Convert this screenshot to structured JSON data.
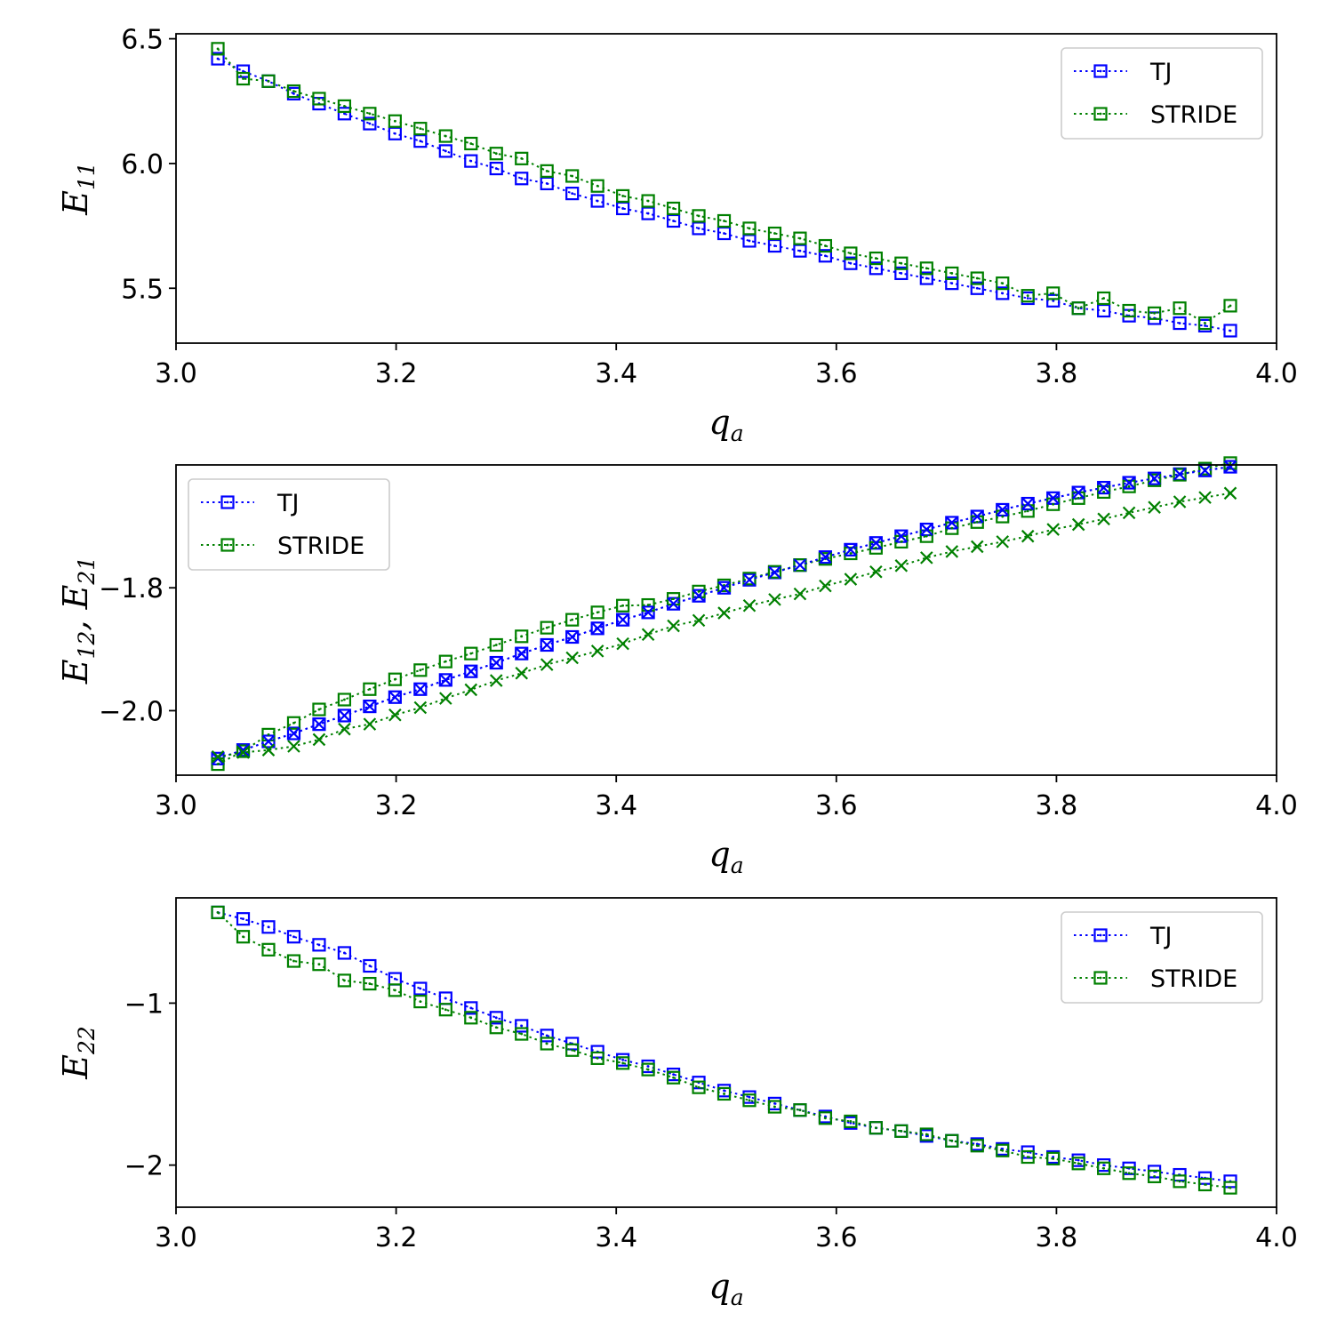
{
  "chart_data": [
    {
      "type": "line",
      "xlabel": {
        "main": "q",
        "sub": "a"
      },
      "ylabel": {
        "main": "E",
        "sub": "11"
      },
      "xlim": [
        3.0,
        4.0
      ],
      "ylim": [
        5.28,
        6.52
      ],
      "xticks": [
        "3.0",
        "3.2",
        "3.4",
        "3.6",
        "3.8",
        "4.0"
      ],
      "yticks": [
        "5.5",
        "6.0",
        "6.5"
      ],
      "legend_position": "top-right",
      "x": [
        3.038,
        3.061,
        3.084,
        3.107,
        3.13,
        3.153,
        3.176,
        3.199,
        3.222,
        3.245,
        3.268,
        3.291,
        3.314,
        3.337,
        3.36,
        3.383,
        3.406,
        3.429,
        3.452,
        3.475,
        3.498,
        3.521,
        3.544,
        3.567,
        3.59,
        3.613,
        3.636,
        3.659,
        3.682,
        3.705,
        3.728,
        3.751,
        3.774,
        3.797,
        3.82,
        3.843,
        3.866,
        3.889,
        3.912,
        3.935,
        3.958
      ],
      "series": [
        {
          "name": "TJ",
          "color": "#0000ff",
          "marker": "square",
          "values": [
            6.42,
            6.37,
            6.33,
            6.28,
            6.24,
            6.2,
            6.16,
            6.12,
            6.09,
            6.05,
            6.01,
            5.98,
            5.94,
            5.92,
            5.88,
            5.85,
            5.82,
            5.8,
            5.77,
            5.74,
            5.72,
            5.69,
            5.67,
            5.65,
            5.63,
            5.6,
            5.58,
            5.56,
            5.54,
            5.52,
            5.5,
            5.48,
            5.46,
            5.45,
            5.42,
            5.41,
            5.39,
            5.38,
            5.36,
            5.35,
            5.33
          ]
        },
        {
          "name": "STRIDE",
          "color": "#008000",
          "marker": "square",
          "values": [
            6.46,
            6.34,
            6.33,
            6.29,
            6.26,
            6.23,
            6.2,
            6.17,
            6.14,
            6.11,
            6.08,
            6.04,
            6.02,
            5.97,
            5.95,
            5.91,
            5.87,
            5.85,
            5.82,
            5.79,
            5.77,
            5.74,
            5.72,
            5.7,
            5.67,
            5.64,
            5.62,
            5.6,
            5.58,
            5.56,
            5.54,
            5.52,
            5.47,
            5.48,
            5.42,
            5.46,
            5.41,
            5.4,
            5.42,
            5.36,
            5.43
          ]
        }
      ]
    },
    {
      "type": "line",
      "xlabel": {
        "main": "q",
        "sub": "a"
      },
      "ylabel": {
        "main": "E",
        "sub": "12",
        "sep": ", ",
        "main2": "E",
        "sub2": "21"
      },
      "xlim": [
        3.0,
        4.0
      ],
      "ylim": [
        -2.105,
        -1.6
      ],
      "xticks": [
        "3.0",
        "3.2",
        "3.4",
        "3.6",
        "3.8",
        "4.0"
      ],
      "yticks": [
        "−2.0",
        "−1.8"
      ],
      "legend_position": "top-left",
      "x": [
        3.038,
        3.061,
        3.084,
        3.107,
        3.13,
        3.153,
        3.176,
        3.199,
        3.222,
        3.245,
        3.268,
        3.291,
        3.314,
        3.337,
        3.36,
        3.383,
        3.406,
        3.429,
        3.452,
        3.475,
        3.498,
        3.521,
        3.544,
        3.567,
        3.59,
        3.613,
        3.636,
        3.659,
        3.682,
        3.705,
        3.728,
        3.751,
        3.774,
        3.797,
        3.82,
        3.843,
        3.866,
        3.889,
        3.912,
        3.935,
        3.958
      ],
      "series": [
        {
          "name": "TJ",
          "color": "#0000ff",
          "marker": "square",
          "values": [
            -2.078,
            -2.064,
            -2.05,
            -2.037,
            -2.022,
            -2.008,
            -1.993,
            -1.978,
            -1.965,
            -1.95,
            -1.936,
            -1.922,
            -1.907,
            -1.893,
            -1.88,
            -1.866,
            -1.852,
            -1.84,
            -1.826,
            -1.813,
            -1.8,
            -1.787,
            -1.775,
            -1.763,
            -1.75,
            -1.738,
            -1.727,
            -1.716,
            -1.705,
            -1.694,
            -1.684,
            -1.673,
            -1.663,
            -1.654,
            -1.645,
            -1.637,
            -1.629,
            -1.622,
            -1.615,
            -1.609,
            -1.603
          ]
        },
        {
          "name": "STRIDE",
          "color": "#008000",
          "marker": "square",
          "values": [
            -2.087,
            -2.066,
            -2.039,
            -2.02,
            -1.998,
            -1.982,
            -1.965,
            -1.949,
            -1.934,
            -1.92,
            -1.907,
            -1.893,
            -1.879,
            -1.865,
            -1.852,
            -1.84,
            -1.829,
            -1.828,
            -1.818,
            -1.806,
            -1.796,
            -1.785,
            -1.774,
            -1.763,
            -1.753,
            -1.744,
            -1.735,
            -1.725,
            -1.716,
            -1.703,
            -1.693,
            -1.684,
            -1.675,
            -1.664,
            -1.654,
            -1.644,
            -1.635,
            -1.625,
            -1.616,
            -1.606,
            -1.597
          ]
        },
        {
          "name": "TJ E21",
          "color": "#0000ff",
          "marker": "x",
          "legend": false,
          "values": [
            -2.078,
            -2.064,
            -2.05,
            -2.037,
            -2.022,
            -2.008,
            -1.993,
            -1.978,
            -1.965,
            -1.95,
            -1.936,
            -1.922,
            -1.907,
            -1.893,
            -1.88,
            -1.866,
            -1.852,
            -1.84,
            -1.826,
            -1.813,
            -1.8,
            -1.787,
            -1.775,
            -1.763,
            -1.75,
            -1.738,
            -1.727,
            -1.716,
            -1.705,
            -1.694,
            -1.684,
            -1.673,
            -1.663,
            -1.654,
            -1.645,
            -1.637,
            -1.629,
            -1.622,
            -1.615,
            -1.609,
            -1.603
          ]
        },
        {
          "name": "STRIDE E21",
          "color": "#008000",
          "marker": "x",
          "legend": false,
          "values": [
            -2.075,
            -2.068,
            -2.064,
            -2.058,
            -2.047,
            -2.03,
            -2.022,
            -2.007,
            -1.995,
            -1.98,
            -1.966,
            -1.951,
            -1.939,
            -1.925,
            -1.914,
            -1.903,
            -1.891,
            -1.876,
            -1.862,
            -1.853,
            -1.841,
            -1.829,
            -1.819,
            -1.81,
            -1.797,
            -1.786,
            -1.774,
            -1.764,
            -1.751,
            -1.741,
            -1.733,
            -1.725,
            -1.716,
            -1.705,
            -1.697,
            -1.688,
            -1.678,
            -1.669,
            -1.66,
            -1.653,
            -1.646
          ]
        }
      ]
    },
    {
      "type": "line",
      "xlabel": {
        "main": "q",
        "sub": "a"
      },
      "ylabel": {
        "main": "E",
        "sub": "22"
      },
      "xlim": [
        3.0,
        4.0
      ],
      "ylim": [
        -2.26,
        -0.35
      ],
      "xticks": [
        "3.0",
        "3.2",
        "3.4",
        "3.6",
        "3.8",
        "4.0"
      ],
      "yticks": [
        "−2",
        "−1"
      ],
      "legend_position": "top-right",
      "x": [
        3.038,
        3.061,
        3.084,
        3.107,
        3.13,
        3.153,
        3.176,
        3.199,
        3.222,
        3.245,
        3.268,
        3.291,
        3.314,
        3.337,
        3.36,
        3.383,
        3.406,
        3.429,
        3.452,
        3.475,
        3.498,
        3.521,
        3.544,
        3.567,
        3.59,
        3.613,
        3.636,
        3.659,
        3.682,
        3.705,
        3.728,
        3.751,
        3.774,
        3.797,
        3.82,
        3.843,
        3.866,
        3.889,
        3.912,
        3.935,
        3.958
      ],
      "series": [
        {
          "name": "TJ",
          "color": "#0000ff",
          "marker": "square",
          "values": [
            -0.44,
            -0.48,
            -0.53,
            -0.59,
            -0.64,
            -0.69,
            -0.77,
            -0.85,
            -0.91,
            -0.97,
            -1.03,
            -1.09,
            -1.14,
            -1.2,
            -1.25,
            -1.3,
            -1.35,
            -1.39,
            -1.44,
            -1.49,
            -1.54,
            -1.58,
            -1.62,
            -1.66,
            -1.7,
            -1.74,
            -1.77,
            -1.79,
            -1.82,
            -1.85,
            -1.87,
            -1.9,
            -1.92,
            -1.95,
            -1.97,
            -2.0,
            -2.02,
            -2.04,
            -2.06,
            -2.08,
            -2.1
          ]
        },
        {
          "name": "STRIDE",
          "color": "#008000",
          "marker": "square",
          "values": [
            -0.44,
            -0.59,
            -0.67,
            -0.74,
            -0.76,
            -0.86,
            -0.88,
            -0.92,
            -0.99,
            -1.04,
            -1.09,
            -1.15,
            -1.19,
            -1.25,
            -1.29,
            -1.34,
            -1.37,
            -1.41,
            -1.46,
            -1.52,
            -1.56,
            -1.6,
            -1.64,
            -1.66,
            -1.71,
            -1.73,
            -1.77,
            -1.79,
            -1.81,
            -1.85,
            -1.88,
            -1.91,
            -1.95,
            -1.96,
            -1.99,
            -2.02,
            -2.05,
            -2.07,
            -2.1,
            -2.12,
            -2.14
          ]
        }
      ]
    }
  ]
}
